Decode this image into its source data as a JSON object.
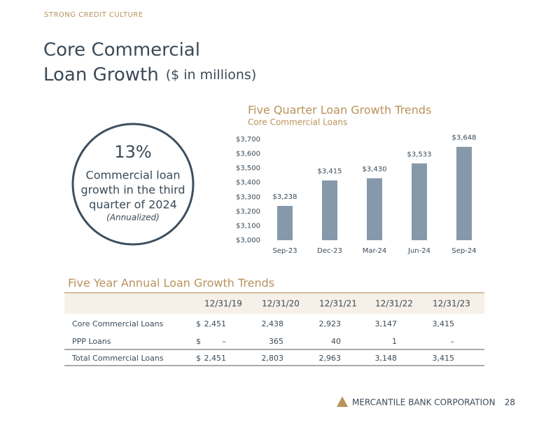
{
  "header": {
    "kicker": "STRONG CREDIT CULTURE",
    "title_line1": "Core Commercial",
    "title_line2": "Loan Growth",
    "title_unit": "($ in millions)"
  },
  "callout": {
    "value": "13%",
    "lines": [
      "Commercial loan",
      "growth in the third",
      "quarter of 2024"
    ],
    "note": "(Annualized)"
  },
  "chart_data": {
    "type": "bar",
    "title": "Five Quarter Loan Growth Trends",
    "subtitle": "Core Commercial Loans",
    "categories": [
      "Sep-23",
      "Dec-23",
      "Mar-24",
      "Jun-24",
      "Sep-24"
    ],
    "values": [
      3238,
      3415,
      3430,
      3533,
      3648
    ],
    "value_labels": [
      "$3,238",
      "$3,415",
      "$3,430",
      "$3,533",
      "$3,648"
    ],
    "color": "#8599ab",
    "ylim": [
      3000,
      3700
    ],
    "yticks": [
      {
        "value": 3000,
        "label": "$3,000"
      },
      {
        "value": 3100,
        "label": "$3,100"
      },
      {
        "value": 3200,
        "label": "$3,200"
      },
      {
        "value": 3300,
        "label": "$3,300"
      },
      {
        "value": 3400,
        "label": "$3,400"
      },
      {
        "value": 3500,
        "label": "$3,500"
      },
      {
        "value": 3600,
        "label": "$3,600"
      },
      {
        "value": 3700,
        "label": "$3,700"
      }
    ]
  },
  "table": {
    "title": "Five Year Annual Loan Growth Trends",
    "columns": [
      "12/31/19",
      "12/31/20",
      "12/31/21",
      "12/31/22",
      "12/31/23"
    ],
    "rows": [
      [
        "Core Commercial Loans",
        "$",
        "2,451",
        "2,438",
        "2,923",
        "3,147",
        "3,415"
      ],
      [
        "PPP Loans",
        "$",
        "–",
        "365",
        "40",
        "1",
        "–"
      ],
      [
        "Total Commercial Loans",
        "$",
        "2,451",
        "2,803",
        "2,963",
        "3,148",
        "3,415"
      ]
    ]
  },
  "footer": {
    "company": "MERCANTILE BANK CORPORATION",
    "page": "28"
  }
}
